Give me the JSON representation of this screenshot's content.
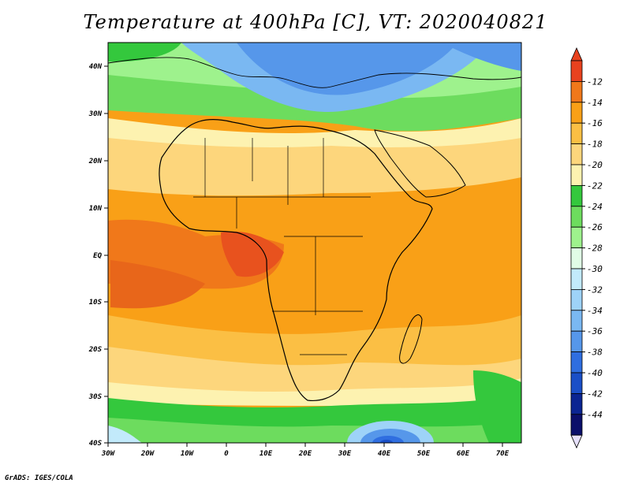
{
  "title": "Temperature at 400hPa [C], VT: 2020040821",
  "credit": "GrADS: IGES/COLA",
  "map": {
    "lon_labels": [
      "30W",
      "20W",
      "10W",
      "0",
      "10E",
      "20E",
      "30E",
      "40E",
      "50E",
      "60E",
      "70E"
    ],
    "lat_labels": [
      "40N",
      "30N",
      "20N",
      "10N",
      "EQ",
      "10S",
      "20S",
      "30S",
      "40S"
    ]
  },
  "colorbar": {
    "levels": [
      "-12",
      "-14",
      "-16",
      "-18",
      "-20",
      "-22",
      "-24",
      "-26",
      "-28",
      "-30",
      "-32",
      "-34",
      "-36",
      "-38",
      "-40",
      "-42",
      "-44"
    ],
    "colors": [
      "#e8421e",
      "#f0781a",
      "#f9a017",
      "#fbbf44",
      "#fdd67c",
      "#fdf2b0",
      "#34c83d",
      "#6ddc5e",
      "#9ef28d",
      "#e0fce6",
      "#c2eafb",
      "#9ed3f8",
      "#7ab8f2",
      "#5697ea",
      "#2f6ee0",
      "#1a4fc7",
      "#0b2592",
      "#0b0f6a"
    ],
    "top_arrow_color": "#e8421e",
    "bottom_arrow_color": "#e6e0fb"
  }
}
